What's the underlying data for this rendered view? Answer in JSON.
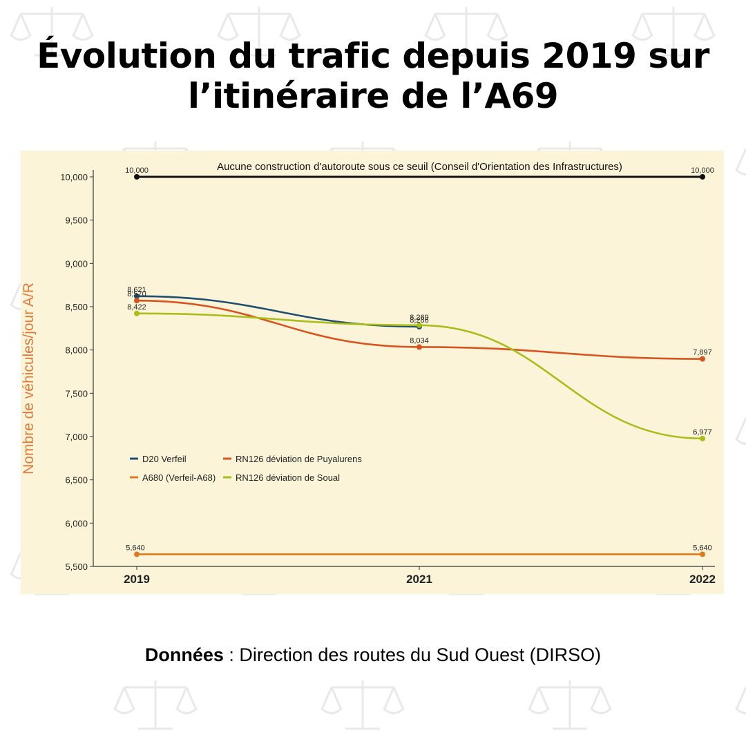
{
  "header": {
    "title_line1": "Évolution du trafic depuis 2019 sur",
    "title_line2": "l’itinéraire de l’A69"
  },
  "footer": {
    "source_label": "Données",
    "source_text": " : Direction des routes du Sud Ouest (DIRSO)"
  },
  "colors": {
    "chart_background": "#fbf4d8",
    "d20": "#1f4e6e",
    "a680": "#e07a1f",
    "puyalurens": "#d9531e",
    "soual": "#a9bd1b",
    "threshold": "#111111",
    "ylabel": "#e07a3a"
  },
  "chart_data": {
    "type": "line",
    "ylabel": "Nombre de véhicules/jour A/R",
    "xlabel": "",
    "categories": [
      "2019",
      "2021",
      "2022"
    ],
    "ylim": [
      5500,
      10000
    ],
    "yticks": [
      5500,
      6000,
      6500,
      7000,
      7500,
      8000,
      8500,
      9000,
      9500,
      10000
    ],
    "ytick_labels": [
      "5,500",
      "6,000",
      "6,500",
      "7,000",
      "7,500",
      "8,000",
      "8,500",
      "9,000",
      "9,500",
      "10,000"
    ],
    "threshold": {
      "label": "Aucune construction d'autoroute sous ce seuil (Conseil d'Orientation des Infrastructures)",
      "points": [
        {
          "x": "2019",
          "y": 10000,
          "label": "10,000"
        },
        {
          "x": "2022",
          "y": 10000,
          "label": "10,000"
        }
      ]
    },
    "series": [
      {
        "name": "D20 Verfeil",
        "color_key": "d20",
        "points": [
          {
            "x": "2019",
            "y": 8621,
            "label": "8,621"
          },
          {
            "x": "2021",
            "y": 8269,
            "label": "8,269"
          }
        ]
      },
      {
        "name": "A680 (Verfeil-A68)",
        "color_key": "a680",
        "points": [
          {
            "x": "2019",
            "y": 5640,
            "label": "5,640"
          },
          {
            "x": "2022",
            "y": 5640,
            "label": "5,640"
          }
        ]
      },
      {
        "name": "RN126 déviation de Puyalurens",
        "color_key": "puyalurens",
        "points": [
          {
            "x": "2019",
            "y": 8570,
            "label": "8,570"
          },
          {
            "x": "2021",
            "y": 8034,
            "label": "8,034"
          },
          {
            "x": "2022",
            "y": 7897,
            "label": "7,897"
          }
        ]
      },
      {
        "name": "RN126 déviation de Soual",
        "color_key": "soual",
        "points": [
          {
            "x": "2019",
            "y": 8422,
            "label": "8,422"
          },
          {
            "x": "2021",
            "y": 8286,
            "label": "8,286"
          },
          {
            "x": "2022",
            "y": 6977,
            "label": "6,977"
          }
        ]
      }
    ],
    "legend_position": "bottom-left",
    "grid": false
  }
}
